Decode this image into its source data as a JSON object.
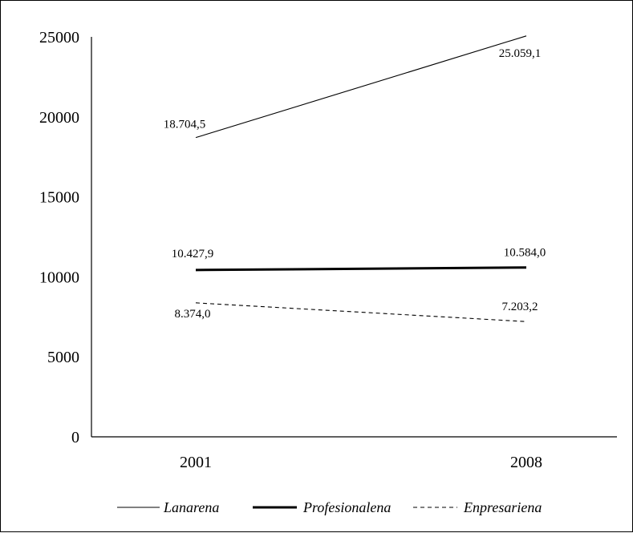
{
  "chart_data": {
    "type": "line",
    "title": "",
    "xlabel": "",
    "ylabel": "",
    "categories": [
      "2001",
      "2008"
    ],
    "ylim": [
      0,
      25000
    ],
    "yticks": [
      "0",
      "5000",
      "10000",
      "15000",
      "20000",
      "25000"
    ],
    "grid": false,
    "legend_position": "bottom",
    "series": [
      {
        "name": "Lanarena",
        "values": [
          18704.5,
          25059.1
        ],
        "labels": [
          "18.704,5",
          "25.059,1"
        ],
        "style": "thin-solid",
        "color": "#000000"
      },
      {
        "name": "Profesionalena",
        "values": [
          10427.9,
          10584.0
        ],
        "labels": [
          "10.427,9",
          "10.584,0"
        ],
        "style": "thick-solid",
        "color": "#000000"
      },
      {
        "name": "Enpresariena",
        "values": [
          8374.0,
          7203.2
        ],
        "labels": [
          "8.374,0",
          "7.203,2"
        ],
        "style": "dashed",
        "color": "#000000"
      }
    ]
  }
}
